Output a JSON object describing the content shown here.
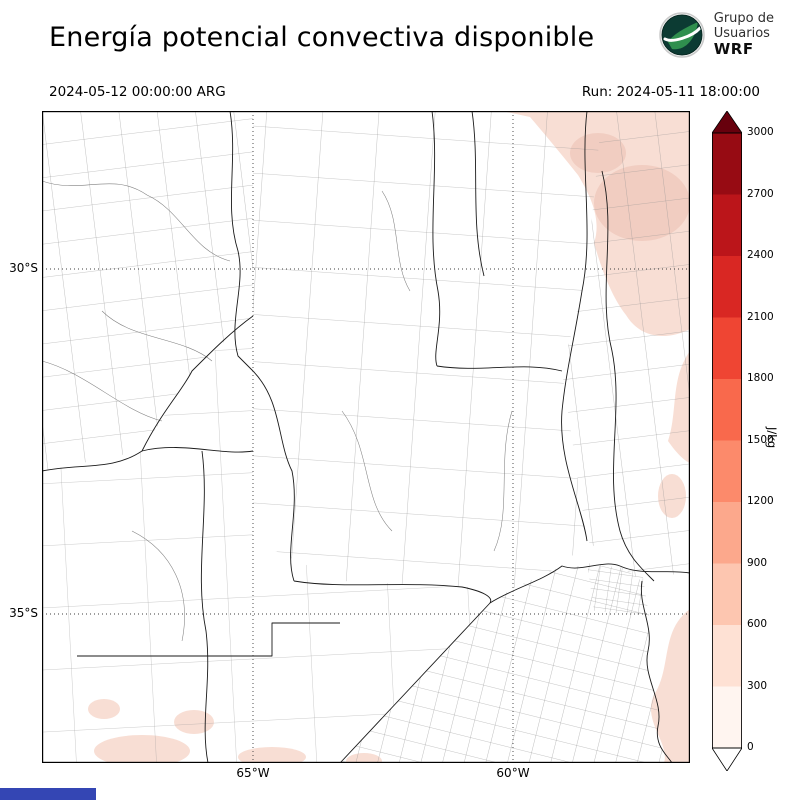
{
  "header": {
    "title": "Energía potencial convectiva disponible",
    "valid_time": "2024-05-12 00:00:00 ARG",
    "run_label": "Run: 2024-05-11 18:00:00",
    "logo": {
      "line1": "Grupo de",
      "line2": "Usuarios",
      "line3": "WRF"
    }
  },
  "map": {
    "lat_ticks": [
      "30°S",
      "35°S"
    ],
    "lon_ticks": [
      "65°W",
      "60°W"
    ],
    "cape_patch_color": "#f8ded4",
    "cape_patch_color_dark": "#f1cdc1"
  },
  "colorbar": {
    "label": "J/kg",
    "ticks": [
      "3000",
      "2700",
      "2400",
      "2100",
      "1800",
      "1500",
      "1200",
      "900",
      "600",
      "300",
      "0"
    ],
    "segment_colors_top_to_bottom": [
      "#970b13",
      "#bb151a",
      "#d92723",
      "#ef4533",
      "#f9694c",
      "#fc8a6b",
      "#fca88c",
      "#fdc6b0",
      "#fee1d4",
      "#fff5f0"
    ],
    "arrow_top_color": "#67000d",
    "arrow_bottom_color": "#ffffff"
  },
  "footer": {
    "bar_color": "#3446b4"
  }
}
